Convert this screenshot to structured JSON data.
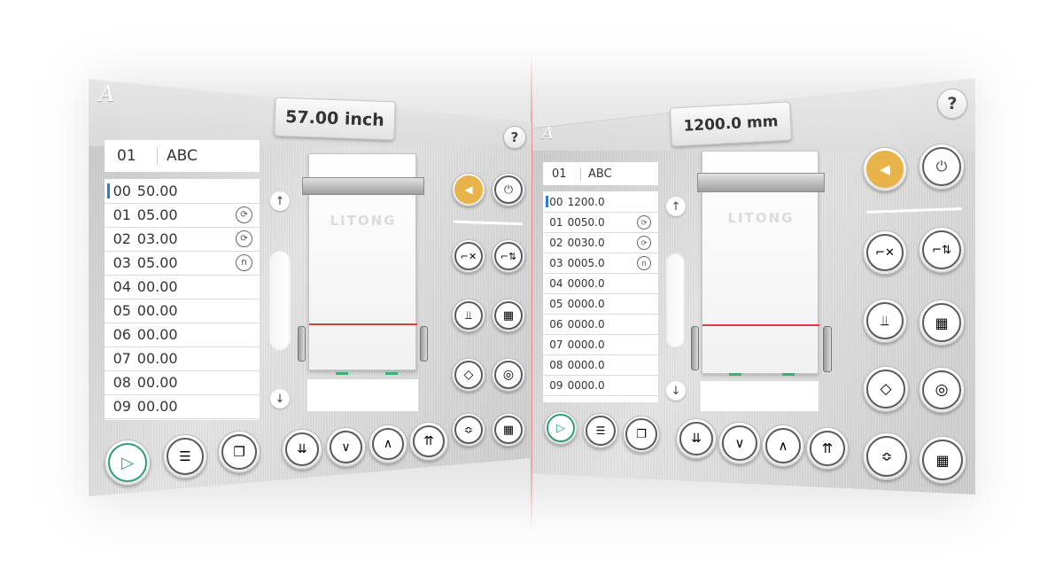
{
  "left": {
    "logo": "A",
    "measurement": "57.00 inch",
    "help": "?",
    "program": {
      "number": "01",
      "name": "ABC"
    },
    "rows": [
      {
        "no": "00",
        "val": "50.00",
        "icon": ""
      },
      {
        "no": "01",
        "val": "05.00",
        "icon": "repeat"
      },
      {
        "no": "02",
        "val": "03.00",
        "icon": "repeat"
      },
      {
        "no": "03",
        "val": "05.00",
        "icon": "n"
      },
      {
        "no": "04",
        "val": "00.00",
        "icon": ""
      },
      {
        "no": "05",
        "val": "00.00",
        "icon": ""
      },
      {
        "no": "06",
        "val": "00.00",
        "icon": ""
      },
      {
        "no": "07",
        "val": "00.00",
        "icon": ""
      },
      {
        "no": "08",
        "val": "00.00",
        "icon": ""
      },
      {
        "no": "09",
        "val": "00.00",
        "icon": ""
      }
    ],
    "machine_label": "LITONG"
  },
  "right": {
    "logo": "A",
    "measurement": "1200.0 mm",
    "help": "?",
    "program": {
      "number": "01",
      "name": "ABC"
    },
    "rows": [
      {
        "no": "00",
        "val": "1200.0",
        "icon": ""
      },
      {
        "no": "01",
        "val": "0050.0",
        "icon": "repeat"
      },
      {
        "no": "02",
        "val": "0030.0",
        "icon": "repeat"
      },
      {
        "no": "03",
        "val": "0005.0",
        "icon": "n"
      },
      {
        "no": "04",
        "val": "0000.0",
        "icon": ""
      },
      {
        "no": "05",
        "val": "0000.0",
        "icon": ""
      },
      {
        "no": "06",
        "val": "0000.0",
        "icon": ""
      },
      {
        "no": "07",
        "val": "0000.0",
        "icon": ""
      },
      {
        "no": "08",
        "val": "0000.0",
        "icon": ""
      },
      {
        "no": "09",
        "val": "0000.0",
        "icon": ""
      }
    ],
    "machine_label": "LITONG"
  },
  "icon_glyphs": {
    "repeat": "⟳",
    "n": "n"
  },
  "colors": {
    "accent_gold": "#e8b44a",
    "play_green": "#2d9d7a",
    "cut_line": "#e23b3b",
    "selection_blue": "#2e7bd8"
  }
}
